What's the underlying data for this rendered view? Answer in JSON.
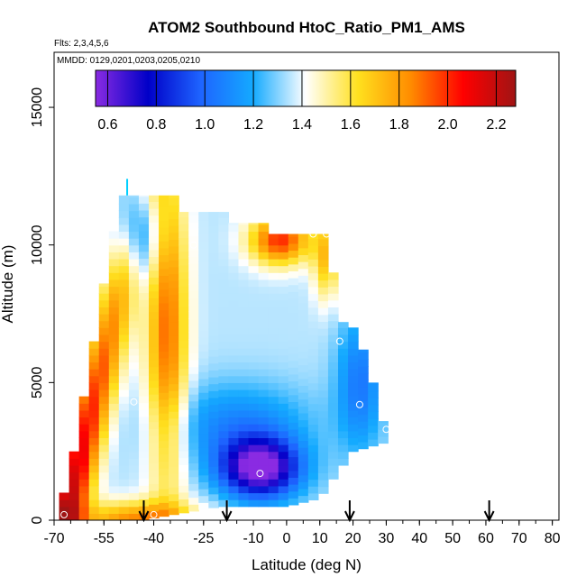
{
  "chart_data": {
    "type": "heatmap",
    "title": "ATOM2 Southbound HtoC_Ratio_PM1_AMS",
    "flights_label": "Flts: 2,3,4,5,6",
    "dates_label": "MMDD: 0129,0201,0203,0205,0210",
    "xlabel": "Latitude (deg N)",
    "ylabel": "Altitude (m)",
    "xlim": [
      -70,
      82
    ],
    "ylim": [
      0,
      17000
    ],
    "x_ticks": [
      -70,
      -55,
      -40,
      -25,
      -10,
      0,
      10,
      20,
      30,
      40,
      50,
      60,
      70,
      80
    ],
    "y_ticks": [
      0,
      5000,
      10000,
      15000
    ],
    "colorbar": {
      "range": [
        0.55,
        2.28
      ],
      "ticks": [
        0.6,
        0.8,
        1.0,
        1.2,
        1.4,
        1.6,
        1.8,
        2.0,
        2.2
      ],
      "stops": [
        "#8a2be2",
        "#0000c8",
        "#1e64ff",
        "#14aaff",
        "#ffffff",
        "#ffe01e",
        "#ff8c00",
        "#ff0000",
        "#a01414"
      ]
    },
    "profile_columns": [
      {
        "lat": -67,
        "top": 1000
      },
      {
        "lat": -64,
        "top": 2500
      },
      {
        "lat": -61,
        "top": 4500
      },
      {
        "lat": -58,
        "top": 6500
      },
      {
        "lat": -55,
        "top": 8600
      },
      {
        "lat": -52,
        "top": 10500
      },
      {
        "lat": -49,
        "top": 11800
      },
      {
        "lat": -46,
        "top": 11800
      },
      {
        "lat": -43,
        "top": 11800
      },
      {
        "lat": -40,
        "top": 11800
      },
      {
        "lat": -37,
        "top": 11800
      },
      {
        "lat": -34,
        "top": 11800
      },
      {
        "lat": -31,
        "top": 11200
      },
      {
        "lat": -28,
        "top": 11200
      },
      {
        "lat": -25,
        "top": 11200
      },
      {
        "lat": -22,
        "top": 11200
      },
      {
        "lat": -19,
        "top": 11200
      },
      {
        "lat": -16,
        "top": 10800
      },
      {
        "lat": -13,
        "top": 10800
      },
      {
        "lat": -10,
        "top": 10800
      },
      {
        "lat": -7,
        "top": 10800
      },
      {
        "lat": -4,
        "top": 10400
      },
      {
        "lat": -1,
        "top": 10400
      },
      {
        "lat": 2,
        "top": 10400
      },
      {
        "lat": 5,
        "top": 10400
      },
      {
        "lat": 8,
        "top": 10400
      },
      {
        "lat": 11,
        "top": 10400
      },
      {
        "lat": 14,
        "top": 9000
      },
      {
        "lat": 17,
        "top": 7200
      },
      {
        "lat": 20,
        "top": 7000
      },
      {
        "lat": 23,
        "top": 6200
      },
      {
        "lat": 26,
        "top": 5000
      },
      {
        "lat": 29,
        "top": 3600
      }
    ],
    "profile_bottoms": [
      {
        "lat": -67,
        "bottom": 0
      },
      {
        "lat": -50,
        "bottom": 0
      },
      {
        "lat": -44,
        "bottom": 0
      },
      {
        "lat": -20,
        "bottom": 500
      },
      {
        "lat": 0,
        "bottom": 500
      },
      {
        "lat": 10,
        "bottom": 800
      },
      {
        "lat": 14,
        "bottom": 1500
      },
      {
        "lat": 20,
        "bottom": 2500
      },
      {
        "lat": 29,
        "bottom": 2800
      }
    ],
    "sample_points": [
      {
        "lat": -55,
        "alt": 10400
      },
      {
        "lat": -28,
        "alt": 10000
      },
      {
        "lat": 8,
        "alt": 10400
      },
      {
        "lat": 12,
        "alt": 10400
      },
      {
        "lat": 16,
        "alt": 6500
      },
      {
        "lat": -46,
        "alt": 4300
      },
      {
        "lat": 22,
        "alt": 4200
      },
      {
        "lat": 30,
        "alt": 3300
      },
      {
        "lat": -8,
        "alt": 1700
      },
      {
        "lat": -40,
        "alt": 200
      },
      {
        "lat": 5,
        "alt": 200
      },
      {
        "lat": -67,
        "alt": 200
      }
    ],
    "arrows_lat": [
      -43,
      -18,
      19,
      61
    ]
  }
}
